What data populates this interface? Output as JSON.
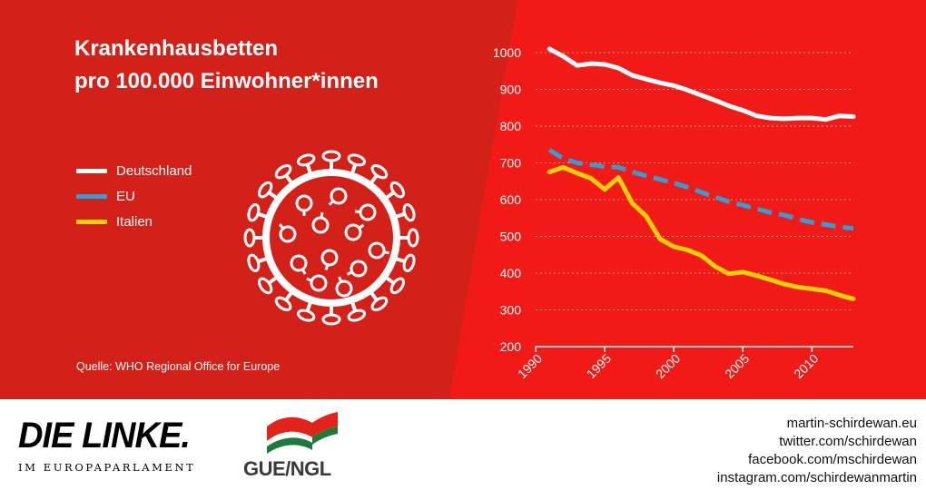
{
  "title_lines": [
    "Krankenhausbetten",
    "pro 100.000 Einwohner*innen"
  ],
  "legend": [
    {
      "label": "Deutschland",
      "color": "#ffffff"
    },
    {
      "label": "EU",
      "color": "#2f9fd6"
    },
    {
      "label": "Italien",
      "color": "#ffd200"
    }
  ],
  "source": "Quelle: WHO Regional Office for Europe",
  "virus_icon": "coronavirus-icon",
  "colors": {
    "left_panel": "#d32119",
    "right_panel": "#f21a16",
    "gridline": "#f7a09a"
  },
  "chart_data": {
    "type": "line",
    "title": "Krankenhausbetten pro 100.000 Einwohner*innen",
    "xlabel": "",
    "ylabel": "",
    "xlim": [
      1990,
      2013
    ],
    "ylim": [
      200,
      1000
    ],
    "x_ticks": [
      1990,
      1995,
      2000,
      2005,
      2010
    ],
    "y_ticks": [
      200,
      300,
      400,
      500,
      600,
      700,
      800,
      900,
      1000
    ],
    "grid": "horizontal dotted",
    "legend_position": "left",
    "series": [
      {
        "name": "Deutschland",
        "color": "#ffffff",
        "style": "solid",
        "x": [
          1991,
          1992,
          1993,
          1994,
          1995,
          1996,
          1997,
          1998,
          1999,
          2000,
          2001,
          2002,
          2003,
          2004,
          2005,
          2006,
          2007,
          2008,
          2009,
          2010,
          2011,
          2012,
          2013
        ],
        "y": [
          1010,
          990,
          965,
          970,
          968,
          958,
          938,
          928,
          918,
          910,
          898,
          884,
          870,
          855,
          843,
          828,
          822,
          820,
          822,
          822,
          818,
          828,
          826
        ]
      },
      {
        "name": "EU",
        "color": "#2f9fd6",
        "style": "dashed",
        "x": [
          1991,
          1992,
          1993,
          1994,
          1995,
          1996,
          1997,
          1998,
          1999,
          2000,
          2001,
          2002,
          2003,
          2004,
          2005,
          2006,
          2007,
          2008,
          2009,
          2010,
          2011,
          2012,
          2013
        ],
        "y": [
          735,
          712,
          700,
          695,
          690,
          688,
          675,
          665,
          655,
          645,
          634,
          620,
          607,
          594,
          585,
          575,
          565,
          558,
          547,
          538,
          532,
          526,
          522
        ]
      },
      {
        "name": "Italien",
        "color": "#ffd200",
        "style": "solid",
        "x": [
          1991,
          1992,
          1993,
          1994,
          1995,
          1996,
          1997,
          1998,
          1999,
          2000,
          2001,
          2002,
          2003,
          2004,
          2005,
          2006,
          2007,
          2008,
          2009,
          2010,
          2011,
          2012,
          2013
        ],
        "y": [
          675,
          688,
          672,
          658,
          628,
          660,
          590,
          555,
          493,
          472,
          463,
          448,
          418,
          398,
          403,
          393,
          382,
          370,
          362,
          357,
          352,
          340,
          330
        ]
      }
    ]
  },
  "footer": {
    "linke_name": "DIE LINKE.",
    "linke_subtitle": "IM EUROPAPARLAMENT",
    "gue_name": "GUE/NGL",
    "contacts": [
      "martin-schirdewan.eu",
      "twitter.com/schirdewan",
      "facebook.com/mschirdewan",
      "instagram.com/schirdewanmartin"
    ]
  }
}
